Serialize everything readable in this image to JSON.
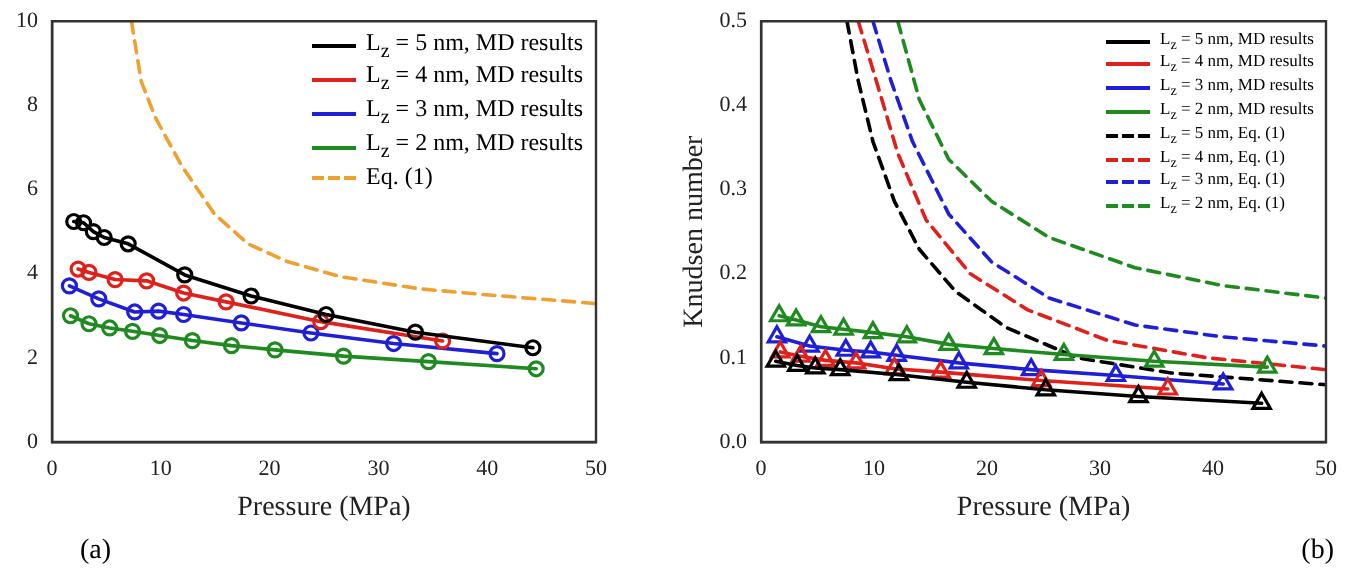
{
  "chart_data": [
    {
      "type": "line",
      "xlabel": "Pressure (MPa)",
      "xlim": [
        0,
        50
      ],
      "xticks": [
        0,
        10,
        20,
        30,
        40,
        50
      ],
      "ylim": [
        0,
        10
      ],
      "yticks": [
        0,
        2,
        4,
        6,
        8,
        10
      ],
      "grid": false,
      "legend": "top right",
      "annotations": [
        "(a)"
      ],
      "series": [
        {
          "name": "L$_{z}$ = 5 nm, MD results",
          "color": "#000000",
          "marker": "circle",
          "line_style": "solid",
          "x": [
            2.0,
            2.9,
            3.8,
            4.8,
            7.0,
            12.2,
            18.3,
            25.2,
            33.4,
            44.2
          ],
          "values": [
            5.24,
            5.21,
            5.0,
            4.86,
            4.71,
            3.97,
            3.47,
            3.03,
            2.61,
            2.24
          ]
        },
        {
          "name": "L$_{z}$ = 4 nm, MD results",
          "color": "#e0201b",
          "marker": "circle",
          "line_style": "solid",
          "x": [
            2.4,
            3.4,
            5.8,
            8.7,
            12.1,
            16.0,
            24.7,
            35.9
          ],
          "values": [
            4.11,
            4.03,
            3.86,
            3.83,
            3.54,
            3.33,
            2.86,
            2.4
          ]
        },
        {
          "name": "L$_{z}$ = 3 nm, MD results",
          "color": "#1f1fd8",
          "marker": "circle",
          "line_style": "solid",
          "x": [
            1.6,
            4.3,
            7.6,
            9.8,
            12.1,
            17.4,
            23.8,
            31.4,
            40.9
          ],
          "values": [
            3.71,
            3.4,
            3.09,
            3.11,
            3.03,
            2.83,
            2.59,
            2.34,
            2.1
          ]
        },
        {
          "name": "L$_{z}$ = 2 nm, MD results",
          "color": "#1f8a1f",
          "marker": "circle",
          "line_style": "solid",
          "x": [
            1.7,
            3.4,
            5.3,
            7.4,
            9.9,
            12.9,
            16.5,
            20.5,
            26.8,
            34.6,
            44.5
          ],
          "values": [
            3.0,
            2.81,
            2.71,
            2.63,
            2.53,
            2.41,
            2.29,
            2.19,
            2.04,
            1.91,
            1.74
          ]
        },
        {
          "name": "Eq. (1)",
          "color": "#f0a030",
          "marker": "none",
          "line_style": "dashed",
          "x": [
            7.3,
            8.2,
            9.5,
            11.9,
            14.9,
            18.0,
            21.6,
            26.5,
            33.8,
            39.9,
            50
          ],
          "values": [
            10,
            8.57,
            7.71,
            6.57,
            5.43,
            4.71,
            4.29,
            3.93,
            3.64,
            3.5,
            3.29
          ]
        }
      ]
    },
    {
      "type": "line",
      "xlabel": "Pressure (MPa)",
      "ylabel": "Knudsen number",
      "xlim": [
        0,
        50
      ],
      "xticks": [
        0,
        10,
        20,
        30,
        40,
        50
      ],
      "ylim": [
        0,
        0.5
      ],
      "yticks": [
        {
          "value": 0,
          "label": "0.0"
        },
        0.1,
        0.2,
        0.3,
        0.4,
        0.5
      ],
      "grid": false,
      "legend": "top right",
      "annotations": [
        "(b)"
      ],
      "series": [
        {
          "name": "L$_{z}$ = 5 nm, MD results",
          "color": "#000000",
          "marker": "triangle",
          "line_style": "solid",
          "x": [
            1.3,
            3.2,
            4.8,
            7.0,
            12.2,
            18.2,
            25.2,
            33.4,
            44.3
          ],
          "values": [
            0.096,
            0.091,
            0.088,
            0.086,
            0.08,
            0.071,
            0.062,
            0.054,
            0.046
          ]
        },
        {
          "name": "L$_{z}$ = 4 nm, MD results",
          "color": "#e0201b",
          "marker": "triangle",
          "line_style": "solid",
          "x": [
            1.7,
            3.5,
            5.7,
            8.4,
            11.8,
            15.9,
            24.8,
            36.0
          ],
          "values": [
            0.107,
            0.102,
            0.097,
            0.094,
            0.087,
            0.083,
            0.073,
            0.063
          ]
        },
        {
          "name": "L$_{z}$ = 3 nm, MD results",
          "color": "#1f1fd8",
          "marker": "triangle",
          "line_style": "solid",
          "x": [
            1.4,
            4.3,
            7.5,
            9.7,
            12.0,
            17.5,
            23.9,
            31.4,
            40.9
          ],
          "values": [
            0.125,
            0.114,
            0.109,
            0.107,
            0.103,
            0.094,
            0.086,
            0.079,
            0.069
          ]
        },
        {
          "name": "L$_{z}$ = 2 nm, MD results",
          "color": "#1f8a1f",
          "marker": "triangle",
          "line_style": "solid",
          "x": [
            1.6,
            3.1,
            5.3,
            7.3,
            9.9,
            12.9,
            16.6,
            20.6,
            26.8,
            34.8,
            44.8
          ],
          "values": [
            0.15,
            0.145,
            0.137,
            0.134,
            0.13,
            0.125,
            0.116,
            0.111,
            0.104,
            0.096,
            0.089
          ]
        },
        {
          "name": "L$_{z}$ = 5 nm, Eq. (1)",
          "color": "#000000",
          "marker": "none",
          "line_style": "dashed",
          "x": [
            7.6,
            8.6,
            9.9,
            11.8,
            14.0,
            17.2,
            21.7,
            28.0,
            36.3,
            50
          ],
          "values": [
            0.5,
            0.429,
            0.357,
            0.286,
            0.229,
            0.179,
            0.136,
            0.1,
            0.082,
            0.068
          ]
        },
        {
          "name": "L$_{z}$ = 4 nm, Eq. (1)",
          "color": "#e0201b",
          "marker": "none",
          "line_style": "dashed",
          "x": [
            8.6,
            10.2,
            12.1,
            14.6,
            18.5,
            23.6,
            30.6,
            39.5,
            50
          ],
          "values": [
            0.5,
            0.429,
            0.343,
            0.264,
            0.2,
            0.157,
            0.121,
            0.1,
            0.086
          ]
        },
        {
          "name": "L$_{z}$ = 3 nm, Eq. (1)",
          "color": "#1f1fd8",
          "marker": "none",
          "line_style": "dashed",
          "x": [
            9.9,
            11.5,
            13.4,
            16.6,
            20.4,
            25.5,
            33.1,
            40.8,
            50
          ],
          "values": [
            0.5,
            0.429,
            0.357,
            0.271,
            0.214,
            0.171,
            0.139,
            0.125,
            0.114
          ]
        },
        {
          "name": "L$_{z}$ = 2 nm, Eq. (1)",
          "color": "#1f8a1f",
          "marker": "none",
          "line_style": "dashed",
          "x": [
            12.1,
            14.0,
            16.6,
            20.4,
            25.5,
            33.1,
            40.8,
            50
          ],
          "values": [
            0.5,
            0.407,
            0.336,
            0.286,
            0.243,
            0.207,
            0.186,
            0.171
          ]
        }
      ]
    }
  ]
}
